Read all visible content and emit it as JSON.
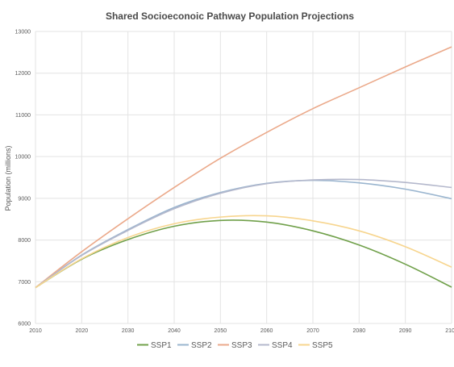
{
  "chart_data": {
    "type": "line",
    "title": "Shared Socioeconoic Pathway Population Projections",
    "xlabel": "",
    "ylabel": "Population (millions)",
    "xlim": [
      2010,
      2100
    ],
    "ylim": [
      6000,
      13000
    ],
    "x_ticks": [
      "2010",
      "2020",
      "2030",
      "2040",
      "2050",
      "2060",
      "2070",
      "2080",
      "2090",
      "2100"
    ],
    "y_ticks": [
      "6000",
      "7000",
      "8000",
      "9000",
      "10000",
      "11000",
      "12000",
      "13000"
    ],
    "grid": true,
    "legend_position": "bottom",
    "x": [
      2010,
      2020,
      2030,
      2040,
      2050,
      2060,
      2070,
      2080,
      2090,
      2100
    ],
    "series": [
      {
        "name": "SSP1",
        "color": "#70a04a",
        "values": [
          6860,
          7540,
          8010,
          8330,
          8470,
          8430,
          8220,
          7880,
          7420,
          6870
        ]
      },
      {
        "name": "SSP2",
        "color": "#9ab5cf",
        "values": [
          6860,
          7640,
          8250,
          8780,
          9140,
          9360,
          9430,
          9370,
          9220,
          8990
        ]
      },
      {
        "name": "SSP3",
        "color": "#eba98a",
        "values": [
          6860,
          7720,
          8510,
          9260,
          9960,
          10580,
          11150,
          11650,
          12150,
          12630
        ]
      },
      {
        "name": "SSP4",
        "color": "#b4b8cc",
        "values": [
          6860,
          7630,
          8230,
          8750,
          9120,
          9350,
          9440,
          9450,
          9380,
          9260
        ]
      },
      {
        "name": "SSP5",
        "color": "#f7d58e",
        "values": [
          6860,
          7550,
          8060,
          8390,
          8550,
          8580,
          8460,
          8220,
          7840,
          7350
        ]
      }
    ]
  }
}
